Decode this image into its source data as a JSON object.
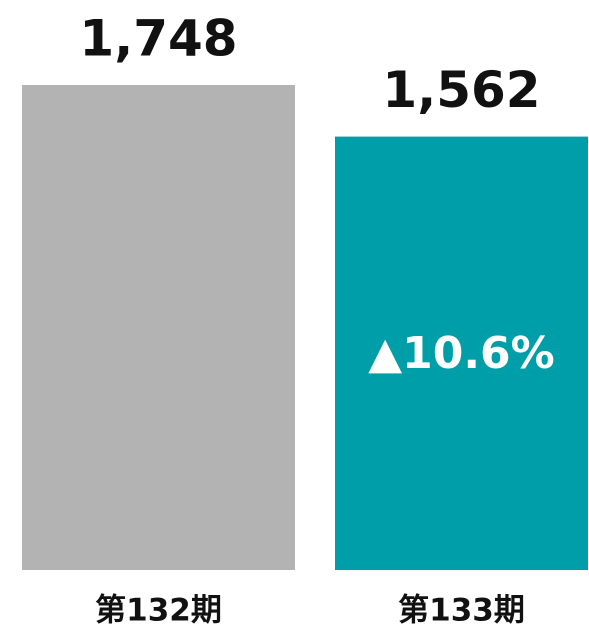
{
  "chart_data": {
    "type": "bar",
    "categories": [
      "第132期",
      "第133期"
    ],
    "values": [
      1748,
      1562
    ],
    "value_labels": [
      "1,748",
      "1,562"
    ],
    "colors": [
      "#b3b3b3",
      "#009ea8"
    ],
    "annotation": "▲10.6%"
  }
}
